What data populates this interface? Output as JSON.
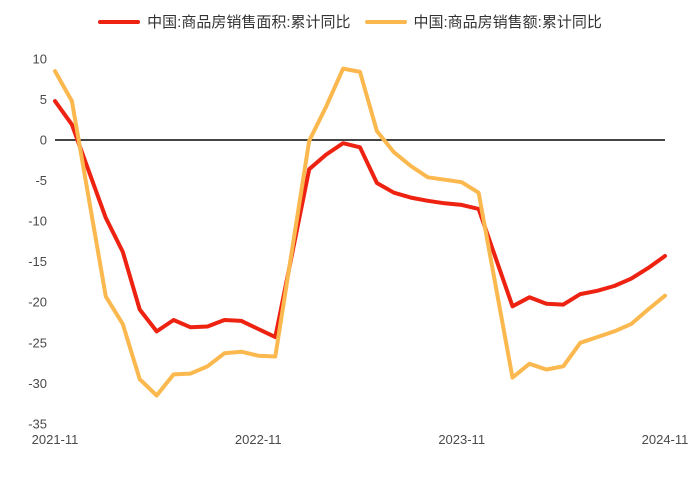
{
  "colors": {
    "background": "#ffffff",
    "axis_line": "#444444",
    "tick_text": "#4a4a4a",
    "legend_text": "#333333",
    "series_area": "#EE2211",
    "series_amount": "#FBB84E"
  },
  "chart_data": {
    "type": "line",
    "title": "",
    "legend_position": "top",
    "grid": false,
    "zero_line": true,
    "y_axis": {
      "ticks": [
        10,
        5,
        0,
        -5,
        -10,
        -15,
        -20,
        -25,
        -30,
        -35
      ],
      "ylim": [
        -35,
        10
      ]
    },
    "x_axis": {
      "tick_labels": [
        "2021-11",
        "2022-11",
        "2023-11",
        "2024-11"
      ],
      "tick_month_offsets": [
        0,
        12,
        24,
        36
      ],
      "total_months": 36
    },
    "x_dates": [
      "2021-11",
      "2021-12",
      "2022-02",
      "2022-03",
      "2022-04",
      "2022-05",
      "2022-06",
      "2022-07",
      "2022-08",
      "2022-09",
      "2022-10",
      "2022-11",
      "2022-12",
      "2023-02",
      "2023-03",
      "2023-04",
      "2023-05",
      "2023-06",
      "2023-07",
      "2023-08",
      "2023-09",
      "2023-10",
      "2023-11",
      "2023-12",
      "2024-02",
      "2024-03",
      "2024-04",
      "2024-05",
      "2024-06",
      "2024-07",
      "2024-08",
      "2024-09",
      "2024-10",
      "2024-11"
    ],
    "x_month_offsets": [
      0,
      1,
      3,
      4,
      5,
      6,
      7,
      8,
      9,
      10,
      11,
      12,
      13,
      15,
      16,
      17,
      18,
      19,
      20,
      21,
      22,
      23,
      24,
      25,
      27,
      28,
      29,
      30,
      31,
      32,
      33,
      34,
      35,
      36
    ],
    "series": [
      {
        "name": "中国:商品房销售面积:累计同比",
        "color": "#EE2211",
        "values": [
          4.8,
          1.9,
          -9.6,
          -13.8,
          -20.9,
          -23.6,
          -22.2,
          -23.1,
          -23.0,
          -22.2,
          -22.3,
          -23.3,
          -24.3,
          -3.6,
          -1.8,
          -0.4,
          -0.9,
          -5.3,
          -6.5,
          -7.1,
          -7.5,
          -7.8,
          -8.0,
          -8.5,
          -20.5,
          -19.4,
          -20.2,
          -20.3,
          -19.0,
          -18.6,
          -18.0,
          -17.1,
          -15.8,
          -14.3
        ]
      },
      {
        "name": "中国:商品房销售额:累计同比",
        "color": "#FBB84E",
        "values": [
          8.5,
          4.8,
          -19.3,
          -22.7,
          -29.5,
          -31.5,
          -28.9,
          -28.8,
          -27.9,
          -26.3,
          -26.1,
          -26.6,
          -26.7,
          -0.1,
          4.1,
          8.8,
          8.4,
          1.1,
          -1.5,
          -3.2,
          -4.6,
          -4.9,
          -5.2,
          -6.5,
          -29.3,
          -27.6,
          -28.3,
          -27.9,
          -25.0,
          -24.3,
          -23.6,
          -22.7,
          -20.9,
          -19.2
        ]
      }
    ]
  }
}
